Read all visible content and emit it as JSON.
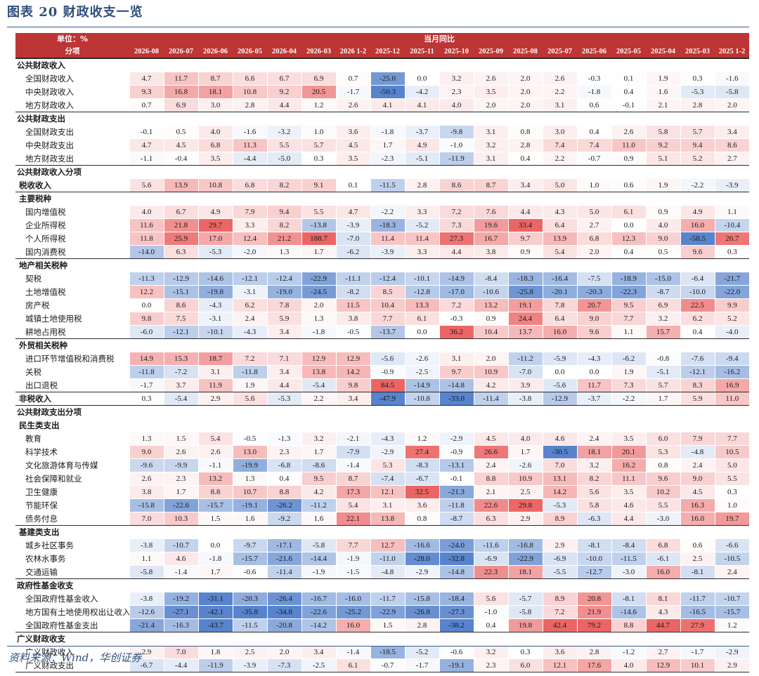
{
  "title": "图表 20    财政收支一览",
  "source": "资料来源：Wind，华创证券",
  "header": {
    "unit": "单位：%",
    "group": "当月同比",
    "category": "分项",
    "columns": [
      "2026-08",
      "2026-07",
      "2026-06",
      "2026-05",
      "2026-04",
      "2026-03",
      "2026 1-2",
      "2025-12",
      "2025-11",
      "2025-10",
      "2025-09",
      "2025-08",
      "2025-07",
      "2025-06",
      "2025-05",
      "2025-04",
      "2025-03",
      "2025 1-2"
    ]
  },
  "colors": {
    "header_bg": "#bd3534",
    "positive": "#e84a4a",
    "negative": "#3a6fc4"
  },
  "rows": [
    {
      "label": "公共财政收入",
      "type": "section"
    },
    {
      "label": "全国财政收入",
      "type": "item",
      "values": [
        4.7,
        11.7,
        8.7,
        6.6,
        6.7,
        6.9,
        0.7,
        -25.0,
        0.0,
        3.2,
        2.6,
        2.0,
        2.6,
        -0.3,
        0.1,
        1.9,
        0.3,
        -1.6
      ]
    },
    {
      "label": "中央财政收入",
      "type": "item",
      "values": [
        9.3,
        16.8,
        18.1,
        10.8,
        9.2,
        20.5,
        -1.7,
        -50.3,
        -4.2,
        2.3,
        3.5,
        2.0,
        2.2,
        -1.8,
        0.4,
        1.6,
        -5.3,
        -5.8
      ]
    },
    {
      "label": "地方财政收入",
      "type": "item",
      "end": true,
      "values": [
        0.7,
        6.9,
        3.0,
        2.8,
        4.4,
        1.2,
        2.6,
        4.1,
        4.1,
        4.0,
        2.0,
        2.0,
        3.1,
        0.6,
        -0.1,
        2.1,
        2.8,
        2.0
      ]
    },
    {
      "label": "公共财政支出",
      "type": "section"
    },
    {
      "label": "全国财政支出",
      "type": "item",
      "values": [
        -0.1,
        0.5,
        4.0,
        -1.6,
        -3.2,
        1.0,
        3.6,
        -1.8,
        -3.7,
        -9.8,
        3.1,
        0.8,
        3.0,
        0.4,
        2.6,
        5.8,
        5.7,
        3.4
      ]
    },
    {
      "label": "中央财政支出",
      "type": "item",
      "values": [
        4.7,
        4.5,
        6.8,
        11.3,
        5.5,
        5.7,
        4.5,
        1.7,
        4.9,
        -1.0,
        3.2,
        2.8,
        7.4,
        7.4,
        11.0,
        9.2,
        9.4,
        8.6
      ]
    },
    {
      "label": "地方财政支出",
      "type": "item",
      "end": true,
      "values": [
        -1.1,
        -0.4,
        3.5,
        -4.4,
        -5.0,
        0.3,
        3.5,
        -2.3,
        -5.1,
        -11.9,
        3.1,
        0.4,
        2.2,
        -0.7,
        0.9,
        5.1,
        5.2,
        2.7
      ]
    },
    {
      "label": "公共财政收入分项",
      "type": "section"
    },
    {
      "label": "税收收入",
      "type": "sub",
      "end": true,
      "values": [
        5.6,
        13.9,
        10.8,
        6.8,
        8.2,
        9.1,
        0.1,
        -11.5,
        2.8,
        8.6,
        8.7,
        3.4,
        5.0,
        1.0,
        0.6,
        1.9,
        -2.2,
        -3.9
      ]
    },
    {
      "label": "主要税种",
      "type": "sub"
    },
    {
      "label": "国内增值税",
      "type": "item",
      "values": [
        4.0,
        6.7,
        4.9,
        7.9,
        9.4,
        5.5,
        4.7,
        -2.2,
        3.3,
        7.2,
        7.6,
        4.4,
        4.3,
        5.0,
        6.1,
        0.9,
        4.9,
        1.1
      ]
    },
    {
      "label": "企业所得税",
      "type": "item",
      "values": [
        11.6,
        21.8,
        29.7,
        3.3,
        8.2,
        -13.8,
        -3.9,
        -18.3,
        -5.2,
        7.3,
        19.6,
        33.4,
        6.4,
        2.7,
        0.0,
        4.0,
        16.0,
        -10.4
      ]
    },
    {
      "label": "个人所得税",
      "type": "item",
      "values": [
        11.8,
        25.9,
        17.0,
        12.4,
        21.2,
        188.7,
        -7.0,
        11.4,
        11.4,
        27.3,
        16.7,
        9.7,
        13.9,
        6.8,
        12.3,
        9.0,
        -58.5,
        26.7
      ]
    },
    {
      "label": "国内消费税",
      "type": "item",
      "end": true,
      "values": [
        -14.0,
        6.3,
        -5.3,
        -2.0,
        1.3,
        1.7,
        -6.2,
        -3.9,
        3.3,
        4.4,
        3.8,
        0.9,
        5.4,
        2.0,
        0.4,
        0.5,
        9.6,
        0.3
      ]
    },
    {
      "label": "地产相关税种",
      "type": "sub"
    },
    {
      "label": "契税",
      "type": "item",
      "values": [
        -11.3,
        -12.9,
        -14.6,
        -12.1,
        -12.4,
        -22.9,
        -11.1,
        -12.4,
        -10.1,
        -14.9,
        -8.4,
        -18.3,
        -16.4,
        -7.5,
        -18.9,
        -15.0,
        -6.4,
        -21.7
      ]
    },
    {
      "label": "土地增值税",
      "type": "item",
      "values": [
        12.2,
        -15.1,
        -19.8,
        -3.1,
        -19.0,
        -24.5,
        -8.2,
        8.5,
        -12.8,
        -17.0,
        -10.6,
        -25.8,
        -20.1,
        -20.3,
        -22.3,
        -8.7,
        -10.0,
        -22.0
      ]
    },
    {
      "label": "房产税",
      "type": "item",
      "values": [
        0.0,
        8.6,
        -4.3,
        6.2,
        7.8,
        2.0,
        11.5,
        10.4,
        13.3,
        7.2,
        13.2,
        19.1,
        7.8,
        20.7,
        9.5,
        6.9,
        22.5,
        9.9
      ]
    },
    {
      "label": "城镇土地使用税",
      "type": "item",
      "values": [
        9.8,
        7.5,
        -3.1,
        2.4,
        5.9,
        1.3,
        3.8,
        7.7,
        6.1,
        -0.3,
        0.9,
        24.4,
        6.4,
        9.0,
        7.7,
        3.2,
        6.2,
        5.2
      ]
    },
    {
      "label": "耕地占用税",
      "type": "item",
      "end": true,
      "values": [
        -6.0,
        -12.1,
        -10.1,
        -4.3,
        3.4,
        -1.8,
        -0.5,
        -13.7,
        0.0,
        36.2,
        10.4,
        13.7,
        16.0,
        9.6,
        1.1,
        15.7,
        0.4,
        -4.0
      ]
    },
    {
      "label": "外贸相关税种",
      "type": "sub"
    },
    {
      "label": "进口环节增值税和消费税",
      "type": "item",
      "values": [
        14.9,
        15.3,
        18.7,
        7.2,
        7.1,
        12.9,
        12.9,
        -5.6,
        -2.6,
        3.1,
        2.0,
        -11.2,
        -5.9,
        -4.3,
        -6.2,
        -0.8,
        -7.6,
        -9.4
      ]
    },
    {
      "label": "关税",
      "type": "item",
      "values": [
        -11.8,
        -7.2,
        3.1,
        -11.8,
        3.4,
        13.8,
        14.2,
        -0.9,
        -2.5,
        9.7,
        10.9,
        -7.0,
        0.0,
        0.0,
        1.9,
        -5.1,
        -12.1,
        -16.2
      ]
    },
    {
      "label": "出口退税",
      "type": "item",
      "end": true,
      "values": [
        -1.7,
        3.7,
        11.9,
        1.9,
        4.4,
        -5.4,
        9.8,
        84.5,
        -14.9,
        -14.8,
        4.2,
        3.9,
        -5.6,
        11.7,
        7.3,
        5.7,
        8.3,
        16.9
      ]
    },
    {
      "label": "非税收入",
      "type": "sub",
      "end": true,
      "values": [
        0.3,
        -5.4,
        2.9,
        5.6,
        -5.3,
        2.2,
        3.4,
        -47.9,
        -10.8,
        -33.0,
        -11.4,
        -3.8,
        -12.9,
        -3.7,
        -2.2,
        1.7,
        5.9,
        11.0
      ]
    },
    {
      "label": "公共财政支出分项",
      "type": "section"
    },
    {
      "label": "民生类支出",
      "type": "sub"
    },
    {
      "label": "教育",
      "type": "item",
      "values": [
        1.3,
        1.5,
        5.4,
        -0.5,
        -1.3,
        3.2,
        -2.1,
        -4.3,
        1.2,
        -2.9,
        4.5,
        4.0,
        4.6,
        2.4,
        3.5,
        6.0,
        7.9,
        7.7
      ]
    },
    {
      "label": "科学技术",
      "type": "item",
      "values": [
        9.0,
        2.6,
        2.6,
        13.0,
        2.3,
        1.7,
        -7.9,
        -2.9,
        27.4,
        -0.9,
        26.6,
        1.7,
        -30.5,
        18.1,
        20.1,
        5.3,
        -4.8,
        10.5
      ]
    },
    {
      "label": "文化旅游体育与传媒",
      "type": "item",
      "values": [
        -9.6,
        -9.9,
        -1.1,
        -19.9,
        -6.8,
        -8.6,
        -1.4,
        5.3,
        -8.3,
        -13.1,
        2.4,
        -2.6,
        7.0,
        3.2,
        16.2,
        0.8,
        2.4,
        5.0
      ]
    },
    {
      "label": "社会保障和就业",
      "type": "item",
      "values": [
        2.6,
        2.3,
        13.2,
        1.3,
        0.4,
        9.5,
        8.7,
        -7.4,
        -6.7,
        -0.1,
        8.8,
        10.9,
        13.1,
        8.2,
        11.1,
        9.6,
        9.0,
        5.5
      ]
    },
    {
      "label": "卫生健康",
      "type": "item",
      "values": [
        3.8,
        1.7,
        8.8,
        10.7,
        8.8,
        4.2,
        17.3,
        12.1,
        32.5,
        -21.3,
        2.1,
        2.5,
        14.2,
        5.6,
        3.5,
        10.2,
        4.5,
        0.3
      ]
    },
    {
      "label": "节能环保",
      "type": "item",
      "values": [
        -15.8,
        -22.6,
        -15.7,
        -19.1,
        -26.2,
        -11.2,
        5.4,
        3.1,
        3.6,
        -11.8,
        22.6,
        29.8,
        -5.3,
        5.8,
        4.6,
        5.5,
        16.3,
        1.0
      ]
    },
    {
      "label": "债务付息",
      "type": "item",
      "end": true,
      "values": [
        7.0,
        10.3,
        1.5,
        1.6,
        -9.2,
        1.6,
        22.1,
        13.8,
        0.8,
        -8.7,
        6.3,
        2.9,
        8.9,
        -6.3,
        4.4,
        -3.0,
        16.0,
        19.7
      ]
    },
    {
      "label": "基建类支出",
      "type": "sub"
    },
    {
      "label": "城乡社区事务",
      "type": "item",
      "values": [
        -3.8,
        -10.7,
        0.0,
        -9.7,
        -17.1,
        -5.8,
        7.7,
        12.7,
        -16.6,
        -24.0,
        -11.6,
        -16.8,
        2.9,
        -8.1,
        -8.4,
        6.8,
        0.6,
        -6.6
      ]
    },
    {
      "label": "农林水事务",
      "type": "item",
      "values": [
        1.1,
        4.6,
        -1.8,
        -15.7,
        -21.6,
        -14.4,
        -1.9,
        -11.0,
        -28.0,
        -32.8,
        -6.9,
        -22.9,
        -6.9,
        -10.0,
        -11.5,
        -6.1,
        2.5,
        -10.5
      ]
    },
    {
      "label": "交通运输",
      "type": "item",
      "end": true,
      "values": [
        -5.8,
        -1.4,
        1.7,
        -0.6,
        -11.4,
        -1.9,
        -1.5,
        -4.8,
        -2.9,
        -14.8,
        22.3,
        18.1,
        -5.5,
        -12.7,
        -3.0,
        16.0,
        -8.1,
        2.4
      ]
    },
    {
      "label": "政府性基金收支",
      "type": "section"
    },
    {
      "label": "全国政府性基金收入",
      "type": "item",
      "values": [
        -3.8,
        -19.2,
        -31.1,
        -20.3,
        -26.4,
        -16.7,
        -16.0,
        -11.7,
        -15.8,
        -18.4,
        5.6,
        -5.7,
        8.9,
        20.8,
        -8.1,
        8.1,
        -11.7,
        -10.7
      ]
    },
    {
      "label": "地方国有土地使用权出让收入",
      "type": "item",
      "values": [
        -12.6,
        -27.1,
        -42.1,
        -35.8,
        -34.8,
        -22.6,
        -25.2,
        -22.9,
        -26.8,
        -27.3,
        -1.0,
        -5.8,
        7.2,
        21.9,
        -14.6,
        4.3,
        -16.5,
        -15.7
      ]
    },
    {
      "label": "全国政府性基金支出",
      "type": "item",
      "end": true,
      "values": [
        -21.4,
        -16.3,
        -43.7,
        -11.5,
        -20.8,
        -14.2,
        16.0,
        1.5,
        2.8,
        -38.2,
        0.4,
        19.8,
        42.4,
        79.2,
        8.8,
        44.7,
        27.9,
        1.2
      ]
    },
    {
      "label": "广义财政收支",
      "type": "section"
    },
    {
      "label": "广义财政收入",
      "type": "item",
      "values": [
        2.9,
        7.0,
        1.8,
        2.5,
        2.0,
        3.4,
        -1.4,
        -18.5,
        -5.2,
        -0.6,
        3.2,
        0.3,
        3.6,
        2.8,
        -1.2,
        2.7,
        -1.7,
        -2.9
      ]
    },
    {
      "label": "广义财政支出",
      "type": "item",
      "end": true,
      "values": [
        -6.7,
        -4.4,
        -11.9,
        -3.9,
        -7.3,
        -2.5,
        6.1,
        -0.7,
        -1.7,
        -19.1,
        2.3,
        6.0,
        12.1,
        17.6,
        4.0,
        12.9,
        10.1,
        2.9
      ]
    }
  ]
}
